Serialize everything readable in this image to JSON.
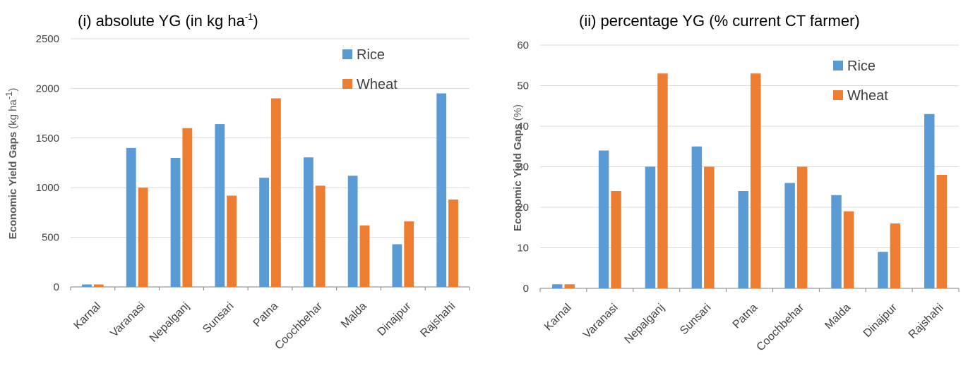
{
  "colors": {
    "rice": "#5b9bd5",
    "wheat": "#ed7d31"
  },
  "chart_data": [
    {
      "type": "bar",
      "title_main": "(i) absolute YG (in kg ha",
      "title_sup": "-1",
      "title_end": ")",
      "ylabel_bold": "Economic Yield Gaps",
      "ylabel_unit_main": "(kg ha",
      "ylabel_unit_sup": "-1",
      "ylabel_unit_end": ")",
      "xlabel": "",
      "ylim": [
        0,
        2500
      ],
      "yticks": [
        "0",
        "500",
        "1000",
        "1500",
        "2000",
        "2500"
      ],
      "grid": true,
      "legend": "top-right",
      "categories": [
        "Karnal",
        "Varanasi",
        "Nepalganj",
        "Sunsari",
        "Patna",
        "Coochbehar",
        "Malda",
        "Dinajpur",
        "Rajshahi"
      ],
      "series": [
        {
          "name": "Rice",
          "values": [
            25,
            1400,
            1300,
            1640,
            1100,
            1305,
            1120,
            430,
            1950
          ]
        },
        {
          "name": "Wheat",
          "values": [
            25,
            1000,
            1600,
            920,
            1900,
            1020,
            620,
            660,
            880
          ]
        }
      ]
    },
    {
      "type": "bar",
      "title_main": "(ii) percentage YG (% current CT farmer)",
      "ylabel_bold": "Economic Yield Gaps",
      "ylabel_unit_main": "(%)",
      "xlabel": "",
      "ylim": [
        0,
        60
      ],
      "yticks": [
        "0",
        "10",
        "20",
        "30",
        "40",
        "50",
        "60"
      ],
      "grid": true,
      "legend": "top-right",
      "categories": [
        "Karnal",
        "Varanasi",
        "Nepalganj",
        "Sunsari",
        "Patna",
        "Coochbehar",
        "Malda",
        "Dinajpur",
        "Rajshahi"
      ],
      "series": [
        {
          "name": "Rice",
          "values": [
            1,
            34,
            30,
            35,
            24,
            26,
            23,
            9,
            43
          ]
        },
        {
          "name": "Wheat",
          "values": [
            1,
            24,
            53,
            30,
            53,
            30,
            19,
            16,
            28
          ]
        }
      ]
    }
  ]
}
